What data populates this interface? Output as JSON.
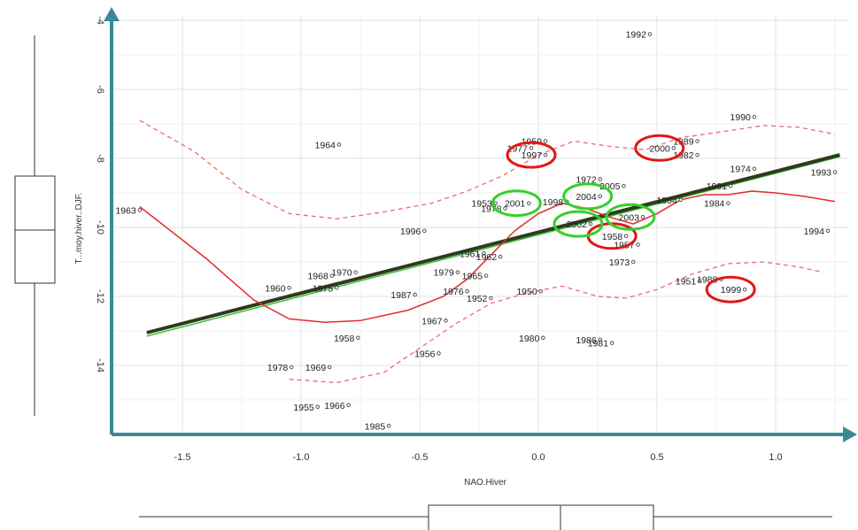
{
  "chart_data": {
    "type": "scatter",
    "title": "",
    "xlabel": "NAO.Hiver",
    "ylabel": "T...moy.hiver..DJF.",
    "xlim": [
      -1.75,
      1.32
    ],
    "ylim": [
      -15.9,
      -3.9
    ],
    "y_axis_inverted": true,
    "grid": true,
    "x_ticks": [
      -1.5,
      -1.0,
      -0.5,
      0.0,
      0.5,
      1.0
    ],
    "x_tick_labels": [
      "-1.5",
      "-1.0",
      "-0.5",
      "0.0",
      "0.5",
      "1.0"
    ],
    "y_ticks": [
      -4,
      -6,
      -8,
      -10,
      -12,
      -14
    ],
    "y_tick_labels": [
      "-4",
      "-6",
      "-8",
      "-10",
      "-12",
      "-14"
    ],
    "points": [
      {
        "label": "1992",
        "x": 0.47,
        "y": -4.4
      },
      {
        "label": "1990",
        "x": 0.91,
        "y": -6.8
      },
      {
        "label": "1964",
        "x": -0.84,
        "y": -7.6
      },
      {
        "label": "1959",
        "x": 0.03,
        "y": -7.5
      },
      {
        "label": "1977",
        "x": -0.03,
        "y": -7.7
      },
      {
        "label": "1997",
        "x": 0.03,
        "y": -7.9
      },
      {
        "label": "1989",
        "x": 0.67,
        "y": -7.5
      },
      {
        "label": "2000",
        "x": 0.57,
        "y": -7.7
      },
      {
        "label": "1982",
        "x": 0.67,
        "y": -7.9
      },
      {
        "label": "1974",
        "x": 0.91,
        "y": -8.3
      },
      {
        "label": "1993",
        "x": 1.25,
        "y": -8.4
      },
      {
        "label": "1972",
        "x": 0.26,
        "y": -8.6
      },
      {
        "label": "2005",
        "x": 0.36,
        "y": -8.8
      },
      {
        "label": "1991",
        "x": 0.81,
        "y": -8.8
      },
      {
        "label": "1963",
        "x": -1.68,
        "y": -9.5
      },
      {
        "label": "1953",
        "x": -0.18,
        "y": -9.3
      },
      {
        "label": "2001",
        "x": -0.04,
        "y": -9.3
      },
      {
        "label": "1978",
        "x": -0.14,
        "y": -9.45
      },
      {
        "label": "1998",
        "x": 0.12,
        "y": -9.25
      },
      {
        "label": "2004",
        "x": 0.26,
        "y": -9.1
      },
      {
        "label": "1954",
        "x": 0.6,
        "y": -9.2
      },
      {
        "label": "1984",
        "x": 0.8,
        "y": -9.3
      },
      {
        "label": "2003",
        "x": 0.44,
        "y": -9.7
      },
      {
        "label": "2002",
        "x": 0.22,
        "y": -9.9
      },
      {
        "label": "1996",
        "x": -0.48,
        "y": -10.1
      },
      {
        "label": "1994",
        "x": 1.22,
        "y": -10.1
      },
      {
        "label": "1958",
        "x": 0.37,
        "y": -10.25
      },
      {
        "label": "1957",
        "x": 0.42,
        "y": -10.5
      },
      {
        "label": "1961",
        "x": -0.23,
        "y": -10.75
      },
      {
        "label": "1962",
        "x": -0.16,
        "y": -10.85
      },
      {
        "label": "1973",
        "x": 0.4,
        "y": -11.0
      },
      {
        "label": "1979",
        "x": -0.34,
        "y": -11.3
      },
      {
        "label": "1970",
        "x": -0.77,
        "y": -11.3
      },
      {
        "label": "1965",
        "x": -0.22,
        "y": -11.4
      },
      {
        "label": "1968",
        "x": -0.87,
        "y": -11.4
      },
      {
        "label": "1960",
        "x": -1.05,
        "y": -11.75
      },
      {
        "label": "1975",
        "x": -0.85,
        "y": -11.75
      },
      {
        "label": "1987",
        "x": -0.52,
        "y": -11.95
      },
      {
        "label": "1976",
        "x": -0.3,
        "y": -11.85
      },
      {
        "label": "1952",
        "x": -0.2,
        "y": -12.05
      },
      {
        "label": "1950",
        "x": 0.01,
        "y": -11.85
      },
      {
        "label": "1951",
        "x": 0.68,
        "y": -11.55
      },
      {
        "label": "1988",
        "x": 0.77,
        "y": -11.5
      },
      {
        "label": "1999",
        "x": 0.87,
        "y": -11.8
      },
      {
        "label": "1967",
        "x": -0.39,
        "y": -12.7
      },
      {
        "label": "1958",
        "x": -0.76,
        "y": -13.2
      },
      {
        "label": "1980",
        "x": 0.02,
        "y": -13.2
      },
      {
        "label": "1986",
        "x": 0.26,
        "y": -13.25
      },
      {
        "label": "1981",
        "x": 0.31,
        "y": -13.35
      },
      {
        "label": "1956",
        "x": -0.42,
        "y": -13.65
      },
      {
        "label": "1978",
        "x": -1.04,
        "y": -14.05
      },
      {
        "label": "1969",
        "x": -0.88,
        "y": -14.05
      },
      {
        "label": "1955",
        "x": -0.93,
        "y": -15.2
      },
      {
        "label": "1966",
        "x": -0.8,
        "y": -15.15
      },
      {
        "label": "1985",
        "x": -0.63,
        "y": -15.75
      }
    ],
    "red_circled_labels": [
      "1997",
      "2000",
      "1958",
      "1999"
    ],
    "green_circled_labels": [
      "2001",
      "2004",
      "2003",
      "2002"
    ]
  }
}
